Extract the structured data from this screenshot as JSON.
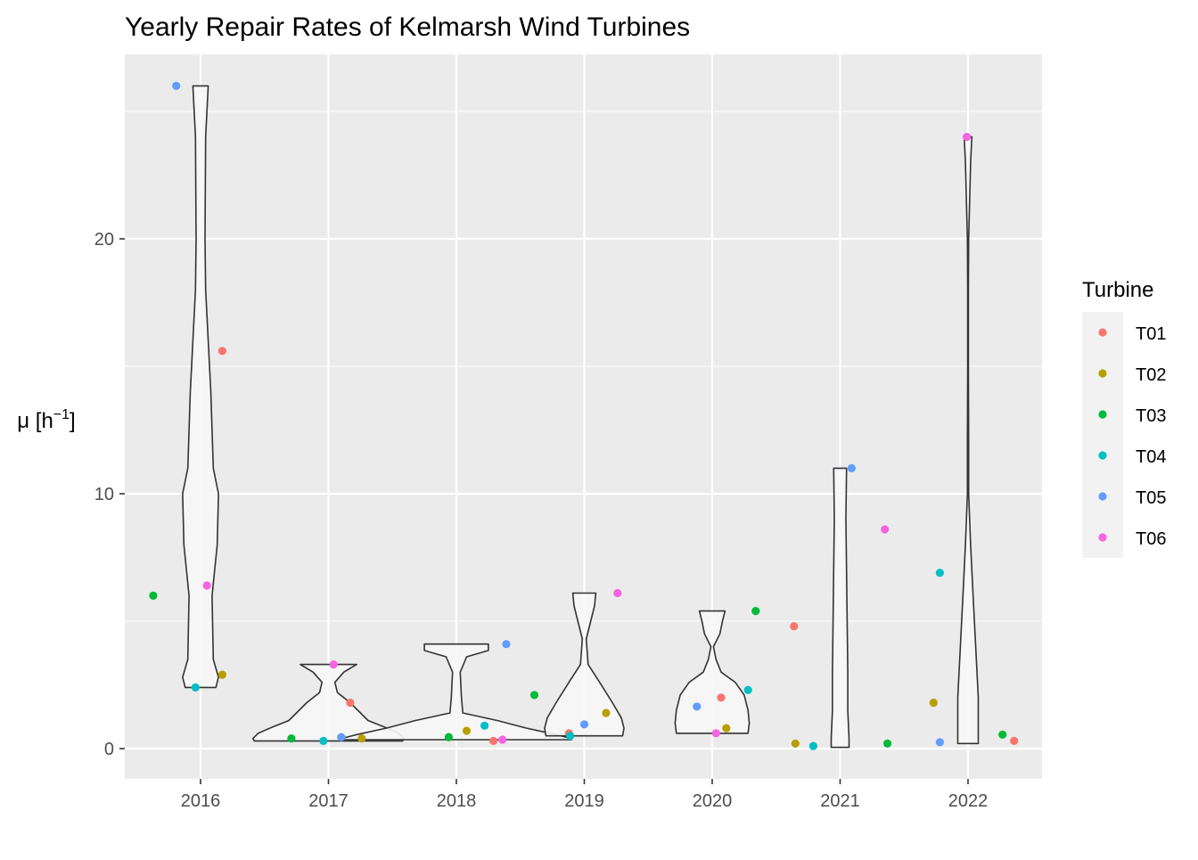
{
  "chart_data": {
    "type": "scatter",
    "overlay": "violin",
    "title": "Yearly Repair Rates of Kelmarsh Wind Turbines",
    "xlabel": "",
    "ylabel": "μ [h⁻¹]",
    "ylabel_base": "μ [h",
    "ylabel_sup": "−1",
    "ylabel_close": "]",
    "categories": [
      "2016",
      "2017",
      "2018",
      "2019",
      "2020",
      "2021",
      "2022"
    ],
    "y_ticks": [
      "0",
      "10",
      "20"
    ],
    "ylim": [
      -1.2,
      27.3
    ],
    "grid": true,
    "panel_background": "#EBEBEB",
    "legend": {
      "title": "Turbine",
      "position": "right"
    },
    "series": [
      {
        "name": "T01",
        "color": "#F8766D",
        "points": [
          [
            2016.17,
            15.6
          ],
          [
            2017.17,
            1.8
          ],
          [
            2018.29,
            0.3
          ],
          [
            2018.88,
            0.6
          ],
          [
            2020.07,
            2.0
          ],
          [
            2020.64,
            4.8
          ],
          [
            2022.36,
            0.3
          ]
        ]
      },
      {
        "name": "T02",
        "color": "#B79F00",
        "points": [
          [
            2016.17,
            2.9
          ],
          [
            2017.26,
            0.4
          ],
          [
            2018.08,
            0.7
          ],
          [
            2019.17,
            1.4
          ],
          [
            2020.11,
            0.8
          ],
          [
            2020.65,
            0.2
          ],
          [
            2021.73,
            1.8
          ]
        ]
      },
      {
        "name": "T03",
        "color": "#00BA38",
        "points": [
          [
            2015.63,
            6.0
          ],
          [
            2016.71,
            0.4
          ],
          [
            2017.94,
            0.45
          ],
          [
            2018.61,
            2.1
          ],
          [
            2020.34,
            5.4
          ],
          [
            2021.37,
            0.2
          ],
          [
            2022.27,
            0.55
          ]
        ]
      },
      {
        "name": "T04",
        "color": "#00BFC4",
        "points": [
          [
            2015.96,
            2.4
          ],
          [
            2016.96,
            0.3
          ],
          [
            2018.22,
            0.9
          ],
          [
            2018.89,
            0.5
          ],
          [
            2020.28,
            2.3
          ],
          [
            2020.79,
            0.1
          ],
          [
            2021.78,
            6.9
          ]
        ]
      },
      {
        "name": "T05",
        "color": "#619CFF",
        "points": [
          [
            2015.81,
            26.0
          ],
          [
            2017.1,
            0.45
          ],
          [
            2018.39,
            4.1
          ],
          [
            2019.0,
            0.95
          ],
          [
            2019.88,
            1.65
          ],
          [
            2021.09,
            11.0
          ],
          [
            2021.78,
            0.25
          ]
        ]
      },
      {
        "name": "T06",
        "color": "#F564E3",
        "points": [
          [
            2016.05,
            6.4
          ],
          [
            2017.04,
            3.3
          ],
          [
            2018.36,
            0.35
          ],
          [
            2019.26,
            6.1
          ],
          [
            2020.03,
            0.6
          ],
          [
            2021.35,
            8.6
          ],
          [
            2021.99,
            24.0
          ]
        ]
      }
    ],
    "violins": [
      {
        "category": "2016",
        "profile": [
          [
            2.4,
            0.12
          ],
          [
            2.8,
            0.14
          ],
          [
            3.5,
            0.1
          ],
          [
            6.0,
            0.09
          ],
          [
            8.0,
            0.13
          ],
          [
            10.0,
            0.14
          ],
          [
            11.0,
            0.1
          ],
          [
            14.0,
            0.08
          ],
          [
            16.0,
            0.06
          ],
          [
            18.0,
            0.04
          ],
          [
            20.0,
            0.035
          ],
          [
            24.0,
            0.04
          ],
          [
            26.0,
            0.06
          ]
        ]
      },
      {
        "category": "2017",
        "profile": [
          [
            0.3,
            0.58
          ],
          [
            0.4,
            0.59
          ],
          [
            0.6,
            0.55
          ],
          [
            0.8,
            0.46
          ],
          [
            1.1,
            0.31
          ],
          [
            1.4,
            0.25
          ],
          [
            1.8,
            0.17
          ],
          [
            2.2,
            0.07
          ],
          [
            2.6,
            0.05
          ],
          [
            3.0,
            0.12
          ],
          [
            3.3,
            0.22
          ]
        ]
      },
      {
        "category": "2018",
        "profile": [
          [
            0.35,
            0.9
          ],
          [
            0.42,
            0.88
          ],
          [
            0.55,
            0.78
          ],
          [
            0.8,
            0.55
          ],
          [
            1.1,
            0.32
          ],
          [
            1.4,
            0.05
          ],
          [
            2.0,
            0.04
          ],
          [
            3.0,
            0.03
          ],
          [
            3.6,
            0.08
          ],
          [
            3.85,
            0.25
          ],
          [
            4.1,
            0.25
          ]
        ]
      },
      {
        "category": "2019",
        "profile": [
          [
            0.5,
            0.3
          ],
          [
            0.8,
            0.31
          ],
          [
            1.2,
            0.29
          ],
          [
            1.8,
            0.22
          ],
          [
            2.6,
            0.12
          ],
          [
            3.3,
            0.03
          ],
          [
            4.3,
            0.015
          ],
          [
            5.0,
            0.05
          ],
          [
            5.6,
            0.08
          ],
          [
            6.1,
            0.09
          ]
        ]
      },
      {
        "category": "2020",
        "profile": [
          [
            0.6,
            0.28
          ],
          [
            1.0,
            0.29
          ],
          [
            1.5,
            0.28
          ],
          [
            2.1,
            0.25
          ],
          [
            2.6,
            0.18
          ],
          [
            3.0,
            0.07
          ],
          [
            3.5,
            0.03
          ],
          [
            4.0,
            0.01
          ],
          [
            4.5,
            0.06
          ],
          [
            5.0,
            0.08
          ],
          [
            5.4,
            0.1
          ]
        ]
      },
      {
        "category": "2021",
        "profile": [
          [
            0.05,
            0.07
          ],
          [
            0.4,
            0.07
          ],
          [
            1.5,
            0.06
          ],
          [
            3.0,
            0.06
          ],
          [
            5.0,
            0.055
          ],
          [
            7.0,
            0.05
          ],
          [
            9.0,
            0.045
          ],
          [
            11.0,
            0.05
          ]
        ]
      },
      {
        "category": "2022",
        "profile": [
          [
            0.2,
            0.08
          ],
          [
            0.6,
            0.08
          ],
          [
            2.0,
            0.08
          ],
          [
            4.0,
            0.06
          ],
          [
            6.0,
            0.04
          ],
          [
            8.0,
            0.02
          ],
          [
            10.0,
            0.005
          ],
          [
            12.0,
            0.005
          ],
          [
            15.0,
            0.003
          ],
          [
            18.0,
            0.003
          ],
          [
            20.0,
            0.005
          ],
          [
            22.0,
            0.015
          ],
          [
            23.0,
            0.02
          ],
          [
            24.0,
            0.03
          ]
        ]
      }
    ]
  }
}
